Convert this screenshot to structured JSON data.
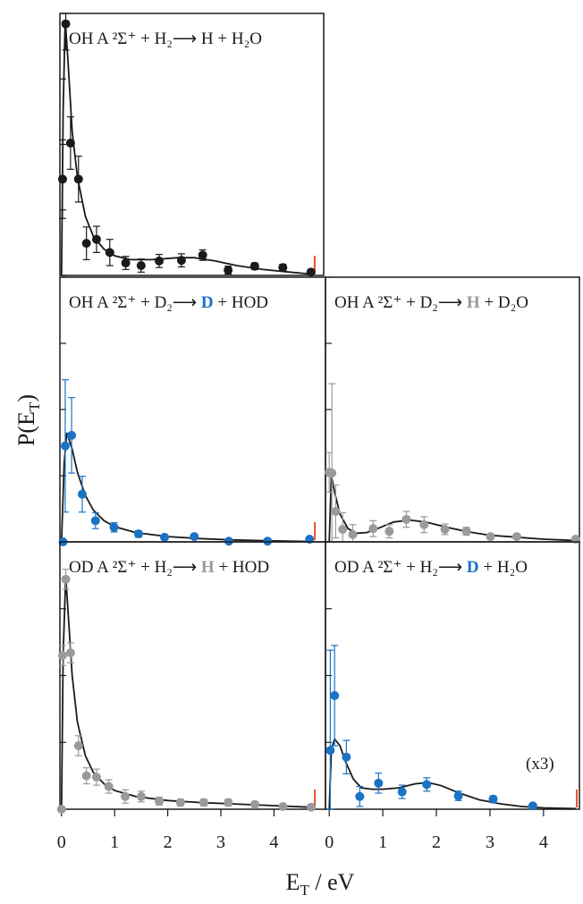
{
  "ylabel": [
    "P(E",
    "T",
    ")"
  ],
  "xlabel": [
    "E",
    "T",
    " / eV"
  ],
  "chart_data": [
    {
      "type": "scatter",
      "title": [
        "OH A ²Σ⁺ + H₂⟶ ",
        "H",
        " + H₂O"
      ],
      "product_color": "#1a1a1a",
      "product_bold": false,
      "color": "#1a1a1a",
      "fit_color": "#1a1a1a",
      "limit_color": "#e8502a",
      "xlim": [
        -0.03,
        4.94
      ],
      "ylim": [
        0,
        4
      ],
      "yticks": [
        0,
        1,
        2,
        3,
        4
      ],
      "x": [
        0.02,
        0.08,
        0.17,
        0.32,
        0.47,
        0.66,
        0.91,
        1.21,
        1.5,
        1.84,
        2.26,
        2.66,
        3.14,
        3.64,
        4.17,
        4.7
      ],
      "values": [
        1.47,
        3.84,
        2.02,
        1.47,
        0.49,
        0.55,
        0.35,
        0.19,
        0.15,
        0.22,
        0.23,
        0.31,
        0.08,
        0.14,
        0.12,
        0.05
      ],
      "errors": [
        0.6,
        0.4,
        0.4,
        0.35,
        0.25,
        0.2,
        0.2,
        0.1,
        0.1,
        0.1,
        0.1,
        0.08,
        0.06,
        0.05,
        0.05,
        0.03
      ],
      "fit": {
        "x": [
          0,
          0.03,
          0.07,
          0.12,
          0.2,
          0.3,
          0.45,
          0.6,
          0.8,
          1.0,
          1.3,
          1.7,
          2.2,
          2.5,
          2.9,
          3.3,
          3.8,
          4.3,
          4.7
        ],
        "values": [
          0,
          2.5,
          3.9,
          3.3,
          2.2,
          1.5,
          0.9,
          0.6,
          0.4,
          0.3,
          0.24,
          0.24,
          0.27,
          0.27,
          0.22,
          0.15,
          0.09,
          0.05,
          0.02
        ]
      },
      "limit": 4.77
    },
    {
      "type": "scatter",
      "title": [
        "OH A ²Σ⁺ + D₂⟶ ",
        "D",
        " + HOD"
      ],
      "product_color": "#1a73c4",
      "product_bold": true,
      "color": "#1a73c4",
      "fit_color": "#1a1a1a",
      "limit_color": "#e8502a",
      "xlim": [
        -0.03,
        4.97
      ],
      "ylim": [
        0,
        4
      ],
      "yticks": [
        0,
        1,
        2,
        3,
        4
      ],
      "x": [
        0.03,
        0.07,
        0.19,
        0.39,
        0.64,
        0.99,
        1.45,
        1.94,
        2.5,
        3.15,
        3.88,
        4.67
      ],
      "values": [
        0,
        1.45,
        1.61,
        0.72,
        0.32,
        0.22,
        0.12,
        0.07,
        0.08,
        0.01,
        0.01,
        0.04
      ],
      "errors": [
        0,
        1.0,
        0.57,
        0.27,
        0.12,
        0.07,
        0.05,
        0.03,
        0.03,
        0.03,
        0.03,
        0.03
      ],
      "fit": {
        "x": [
          0,
          0.05,
          0.1,
          0.2,
          0.3,
          0.45,
          0.6,
          0.8,
          1.0,
          1.4,
          2.0,
          2.6,
          3.2,
          4.0,
          4.7
        ],
        "values": [
          0,
          1.2,
          1.65,
          1.4,
          1.05,
          0.7,
          0.48,
          0.32,
          0.23,
          0.14,
          0.08,
          0.05,
          0.03,
          0.015,
          0.005
        ]
      },
      "limit": 4.77
    },
    {
      "type": "scatter",
      "title": [
        "OH A ²Σ⁺ + D₂⟶ ",
        "H",
        " + D₂O"
      ],
      "product_color": "#9a9a9a",
      "product_bold": true,
      "color": "#9a9a9a",
      "fit_color": "#1a1a1a",
      "xlim": [
        -0.07,
        4.67
      ],
      "ylim": [
        0,
        4
      ],
      "yticks": [
        0,
        1,
        2,
        3,
        4
      ],
      "x": [
        0,
        0.05,
        0.12,
        0.25,
        0.44,
        0.82,
        1.12,
        1.44,
        1.77,
        2.16,
        2.56,
        3.01,
        3.5,
        4.6
      ],
      "values": [
        1.05,
        1.04,
        0.46,
        0.19,
        0.11,
        0.2,
        0.16,
        0.34,
        0.26,
        0.19,
        0.16,
        0.08,
        0.08,
        0.04
      ],
      "errors": [
        0.3,
        1.35,
        0.4,
        0.25,
        0.15,
        0.12,
        0.1,
        0.12,
        0.12,
        0.08,
        0.06,
        0.04,
        0.04,
        0.03
      ],
      "fit": {
        "x": [
          0,
          0.04,
          0.1,
          0.2,
          0.35,
          0.5,
          0.7,
          0.9,
          1.2,
          1.5,
          1.8,
          2.2,
          2.6,
          3.0,
          3.5,
          4.0,
          4.6
        ],
        "values": [
          0,
          1.0,
          0.75,
          0.42,
          0.2,
          0.13,
          0.14,
          0.2,
          0.3,
          0.33,
          0.3,
          0.22,
          0.15,
          0.1,
          0.07,
          0.04,
          0.02
        ]
      }
    },
    {
      "type": "scatter",
      "title": [
        "OD A ²Σ⁺ + H₂⟶ ",
        "H",
        " + HOD"
      ],
      "product_color": "#9a9a9a",
      "product_bold": true,
      "color": "#9a9a9a",
      "fit_color": "#1a1a1a",
      "limit_color": "#e8502a",
      "xlim": [
        -0.03,
        4.97
      ],
      "ylim": [
        0,
        4
      ],
      "yticks": [
        0,
        1,
        2,
        3,
        4
      ],
      "xticks": [
        0,
        1,
        2,
        3,
        4
      ],
      "x": [
        0,
        0.02,
        0.08,
        0.17,
        0.32,
        0.47,
        0.66,
        0.89,
        1.2,
        1.5,
        1.84,
        2.24,
        2.68,
        3.14,
        3.64,
        4.17,
        4.7
      ],
      "values": [
        0,
        2.3,
        3.44,
        2.34,
        0.95,
        0.5,
        0.48,
        0.34,
        0.19,
        0.19,
        0.12,
        0.1,
        0.1,
        0.1,
        0.07,
        0.04,
        0.03
      ],
      "errors": [
        0,
        0.15,
        0.15,
        0.15,
        0.15,
        0.12,
        0.12,
        0.1,
        0.1,
        0.08,
        0.06,
        0.05,
        0.05,
        0.05,
        0.04,
        0.03,
        0.03
      ],
      "fit": {
        "x": [
          0,
          0.03,
          0.08,
          0.12,
          0.2,
          0.3,
          0.45,
          0.6,
          0.8,
          1.0,
          1.4,
          2.0,
          2.6,
          3.2,
          3.8,
          4.7
        ],
        "values": [
          0,
          2.3,
          3.5,
          3.0,
          2.0,
          1.3,
          0.8,
          0.55,
          0.38,
          0.28,
          0.19,
          0.13,
          0.1,
          0.08,
          0.06,
          0.03
        ]
      },
      "limit": 4.77
    },
    {
      "type": "scatter",
      "title": [
        "OD A ²Σ⁺ + H₂⟶ ",
        "D",
        " + H₂O"
      ],
      "product_color": "#1a73c4",
      "product_bold": true,
      "color": "#1a73c4",
      "fit_color": "#1a1a1a",
      "limit_color": "#e8502a",
      "annotation": "(x3)",
      "xlim": [
        -0.07,
        4.67
      ],
      "ylim": [
        0,
        4
      ],
      "yticks": [
        0,
        1,
        2,
        3,
        4
      ],
      "xticks": [
        0,
        1,
        2,
        3,
        4
      ],
      "x": [
        0.02,
        0.1,
        0.32,
        0.57,
        0.92,
        1.36,
        1.82,
        2.41,
        3.06,
        3.8
      ],
      "values": [
        0.88,
        1.7,
        0.78,
        0.19,
        0.39,
        0.26,
        0.37,
        0.2,
        0.15,
        0.05
      ],
      "errors": [
        1.5,
        0.75,
        0.25,
        0.15,
        0.15,
        0.1,
        0.1,
        0.07,
        0.05,
        0.03
      ],
      "fit": {
        "x": [
          0,
          0.04,
          0.1,
          0.2,
          0.3,
          0.45,
          0.6,
          0.8,
          1.0,
          1.3,
          1.6,
          1.85,
          2.1,
          2.4,
          2.8,
          3.2,
          3.6,
          4.0,
          4.6
        ],
        "values": [
          0,
          0.9,
          1.05,
          0.95,
          0.72,
          0.45,
          0.32,
          0.3,
          0.3,
          0.32,
          0.38,
          0.4,
          0.35,
          0.25,
          0.14,
          0.08,
          0.04,
          0.02,
          0.01
        ]
      },
      "limit": 4.62
    }
  ]
}
